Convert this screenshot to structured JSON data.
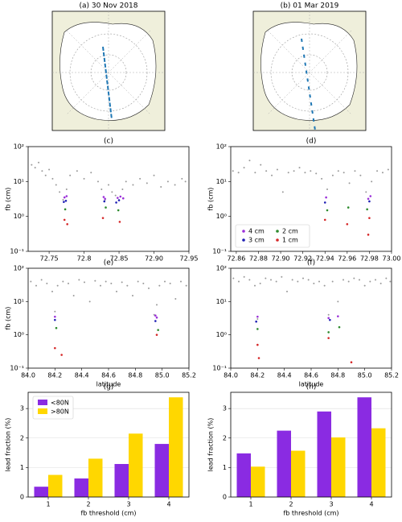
{
  "chart_data": [
    {
      "type": "map",
      "title": "(a) 30 Nov 2018"
    },
    {
      "type": "map",
      "title": "(b) 01 Mar 2019"
    },
    {
      "type": "scatter",
      "title": "(c)",
      "ylabel": "fb (cm)",
      "log_y": true,
      "grid": false,
      "xlim": [
        72.72,
        72.95
      ],
      "xticks": [
        72.75,
        72.8,
        {
          "value": 72.85,
          "label": "72.85"
        },
        {
          "value": 72.9,
          "label": "72.90"
        },
        72.95
      ],
      "ylim": [
        0.1,
        100
      ],
      "yticks": [
        {
          "value": 0.1,
          "label": "10⁻¹"
        },
        {
          "value": 1,
          "label": "10⁰"
        },
        {
          "value": 10,
          "label": "10¹"
        },
        {
          "value": 100,
          "label": "10²"
        }
      ],
      "series": [
        {
          "color": "#999999",
          "x": [
            72.725,
            72.73,
            72.735,
            72.74,
            72.745,
            72.75,
            72.755,
            72.76,
            72.765,
            72.77,
            72.775,
            72.78,
            72.79,
            72.8,
            72.81,
            72.82,
            72.825,
            72.83,
            72.835,
            72.84,
            72.845,
            72.85,
            72.855,
            72.86,
            72.87,
            72.88,
            72.89,
            72.9,
            72.91,
            72.92,
            72.93,
            72.94,
            72.945
          ],
          "values": [
            30,
            25,
            35,
            20,
            15,
            22,
            12,
            8,
            5,
            3,
            6,
            15,
            20,
            12,
            18,
            10,
            6,
            3,
            8,
            5,
            4,
            3,
            6,
            10,
            8,
            12,
            9,
            15,
            7,
            10,
            8,
            12,
            10
          ]
        },
        {
          "color": "#9b30d9",
          "x": [
            72.772,
            72.775,
            72.828,
            72.83,
            72.848,
            72.852,
            72.856
          ],
          "values": [
            3.5,
            3.8,
            3.6,
            3.2,
            3.4,
            3.7,
            3.3
          ]
        },
        {
          "color": "#1f1fb4",
          "x": [
            72.771,
            72.774,
            72.829,
            72.846,
            72.85
          ],
          "values": [
            2.6,
            2.8,
            2.7,
            2.5,
            2.9
          ]
        },
        {
          "color": "#2e8b2e",
          "x": [
            72.773,
            72.831,
            72.849
          ],
          "values": [
            1.6,
            1.8,
            1.5
          ]
        },
        {
          "color": "#d62728",
          "x": [
            72.772,
            72.776,
            72.827,
            72.851
          ],
          "values": [
            0.8,
            0.6,
            0.9,
            0.7
          ]
        }
      ]
    },
    {
      "type": "scatter",
      "title": "(d)",
      "ylabel": "fb (cm)",
      "log_y": true,
      "grid": false,
      "legend": "lower left",
      "xlim": [
        72.855,
        73.0
      ],
      "xticks": [
        72.86,
        72.88,
        {
          "value": 72.9,
          "label": "72.90"
        },
        72.92,
        72.94,
        72.96,
        72.98,
        {
          "value": 73,
          "label": "73.00"
        }
      ],
      "ylim": [
        0.1,
        100
      ],
      "yticks": [
        {
          "value": 0.1,
          "label": "10⁻¹"
        },
        {
          "value": 1,
          "label": "10⁰"
        },
        {
          "value": 10,
          "label": "10¹"
        },
        {
          "value": 100,
          "label": "10²"
        }
      ],
      "series": [
        {
          "color": "#999999",
          "x": [
            72.857,
            72.862,
            72.867,
            72.872,
            72.877,
            72.882,
            72.887,
            72.892,
            72.897,
            72.902,
            72.907,
            72.912,
            72.917,
            72.922,
            72.927,
            72.932,
            72.937,
            72.942,
            72.947,
            72.952,
            72.957,
            72.962,
            72.967,
            72.972,
            72.977,
            72.982,
            72.987,
            72.992,
            72.997
          ],
          "values": [
            20,
            18,
            25,
            40,
            18,
            30,
            20,
            15,
            22,
            5,
            18,
            20,
            25,
            18,
            20,
            17,
            12,
            6,
            15,
            20,
            18,
            9,
            20,
            15,
            5,
            10,
            20,
            18,
            22
          ]
        },
        {
          "name": "4 cm",
          "color": "#9b30d9",
          "x": [
            72.941,
            72.979,
            72.981
          ],
          "values": [
            3.5,
            3.2,
            3.8
          ]
        },
        {
          "name": "3 cm",
          "color": "#1f1fb4",
          "x": [
            72.94,
            72.98
          ],
          "values": [
            2.5,
            2.7
          ]
        },
        {
          "name": "2 cm",
          "color": "#2e8b2e",
          "x": [
            72.942,
            72.961,
            72.978
          ],
          "values": [
            1.5,
            1.8,
            1.6
          ]
        },
        {
          "name": "1 cm",
          "color": "#d62728",
          "x": [
            72.94,
            72.96,
            72.98,
            72.979
          ],
          "values": [
            0.8,
            0.6,
            0.9,
            0.3
          ]
        }
      ]
    },
    {
      "type": "scatter",
      "title": "(e)",
      "ylabel": "fb (cm)",
      "xlabel": "latitude",
      "log_y": true,
      "grid": false,
      "xlim": [
        84.0,
        85.2
      ],
      "xticks": [
        {
          "value": 84,
          "label": "84.0"
        },
        84.2,
        84.4,
        84.6,
        84.8,
        {
          "value": 85,
          "label": "85.0"
        },
        85.2
      ],
      "ylim": [
        0.1,
        100
      ],
      "yticks": [
        {
          "value": 0.1,
          "label": "10⁻¹"
        },
        {
          "value": 1,
          "label": "10⁰"
        },
        {
          "value": 10,
          "label": "10¹"
        },
        {
          "value": 100,
          "label": "10²"
        }
      ],
      "series": [
        {
          "color": "#999999",
          "x": [
            84.02,
            84.06,
            84.1,
            84.14,
            84.18,
            84.2,
            84.22,
            84.26,
            84.3,
            84.34,
            84.38,
            84.42,
            84.46,
            84.5,
            84.54,
            84.58,
            84.62,
            84.66,
            84.7,
            84.74,
            84.78,
            84.82,
            84.86,
            84.9,
            84.94,
            84.96,
            84.98,
            85.02,
            85.06,
            85.1,
            85.14,
            85.18
          ],
          "values": [
            40,
            30,
            45,
            35,
            20,
            5,
            30,
            40,
            35,
            15,
            45,
            38,
            10,
            42,
            30,
            40,
            35,
            20,
            38,
            30,
            15,
            40,
            35,
            25,
            4,
            8,
            30,
            40,
            35,
            12,
            40,
            30
          ]
        },
        {
          "color": "#9b30d9",
          "x": [
            84.2,
            84.95,
            84.96
          ],
          "values": [
            3.5,
            3.8,
            3.3
          ]
        },
        {
          "color": "#1f1fb4",
          "x": [
            84.2,
            84.95
          ],
          "values": [
            2.8,
            2.6
          ]
        },
        {
          "color": "#2e8b2e",
          "x": [
            84.21,
            84.97
          ],
          "values": [
            1.6,
            1.4
          ]
        },
        {
          "color": "#d62728",
          "x": [
            84.2,
            84.25,
            84.96
          ],
          "values": [
            0.4,
            0.25,
            1.0
          ]
        }
      ]
    },
    {
      "type": "scatter",
      "title": "(f)",
      "xlabel": "latitude",
      "log_y": true,
      "grid": false,
      "xlim": [
        84.0,
        85.2
      ],
      "xticks": [
        {
          "value": 84,
          "label": "84.0"
        },
        84.2,
        84.4,
        84.6,
        84.8,
        {
          "value": 85,
          "label": "85.0"
        },
        85.2
      ],
      "ylim": [
        0.1,
        100
      ],
      "yticks": [
        {
          "value": 0.1,
          "label": "10⁻¹"
        },
        {
          "value": 1,
          "label": "10⁰"
        },
        {
          "value": 10,
          "label": "10¹"
        },
        {
          "value": 100,
          "label": "10²"
        }
      ],
      "series": [
        {
          "color": "#999999",
          "x": [
            84.02,
            84.06,
            84.1,
            84.14,
            84.18,
            84.2,
            84.22,
            84.26,
            84.3,
            84.34,
            84.38,
            84.42,
            84.46,
            84.5,
            84.54,
            84.58,
            84.62,
            84.66,
            84.7,
            84.73,
            84.76,
            84.8,
            84.84,
            84.88,
            84.92,
            84.96,
            85.0,
            85.04,
            85.08,
            85.12,
            85.16,
            85.19
          ],
          "values": [
            50,
            40,
            55,
            45,
            30,
            3,
            35,
            50,
            45,
            40,
            55,
            20,
            45,
            40,
            50,
            45,
            35,
            40,
            30,
            4,
            40,
            10,
            45,
            40,
            50,
            45,
            30,
            40,
            45,
            35,
            50,
            40
          ]
        },
        {
          "color": "#9b30d9",
          "x": [
            84.2,
            84.73,
            84.8
          ],
          "values": [
            3.5,
            3.2,
            3.6
          ]
        },
        {
          "color": "#1f1fb4",
          "x": [
            84.19,
            84.74
          ],
          "values": [
            2.5,
            2.8
          ]
        },
        {
          "color": "#2e8b2e",
          "x": [
            84.2,
            84.73,
            84.81
          ],
          "values": [
            1.5,
            1.2,
            1.7
          ]
        },
        {
          "color": "#d62728",
          "x": [
            84.2,
            84.21,
            84.73,
            84.9
          ],
          "values": [
            0.5,
            0.2,
            0.8,
            0.15
          ]
        }
      ]
    },
    {
      "type": "bar",
      "title": "(g)",
      "xlabel": "fb threshold (cm)",
      "ylabel": "lead fraction (%)",
      "grid": true,
      "legend": "upper left",
      "categories": [
        "1",
        "2",
        "3",
        "4"
      ],
      "ylim": [
        0,
        3.55
      ],
      "yticks": [
        0,
        1,
        2,
        3
      ],
      "series": [
        {
          "name": "<80N",
          "color": "#8a2be2",
          "values": [
            0.35,
            0.63,
            1.12,
            1.8
          ]
        },
        {
          "name": ">80N",
          "color": "#ffd700",
          "values": [
            0.75,
            1.3,
            2.15,
            3.38
          ]
        }
      ]
    },
    {
      "type": "bar",
      "title": "(h)",
      "xlabel": "fb threshold (cm)",
      "ylabel": "lead fraction (%)",
      "grid": true,
      "categories": [
        "1",
        "2",
        "3",
        "4"
      ],
      "ylim": [
        0,
        3.55
      ],
      "yticks": [
        0,
        1,
        2,
        3
      ],
      "series": [
        {
          "color": "#8a2be2",
          "values": [
            1.48,
            2.25,
            2.9,
            3.38
          ]
        },
        {
          "color": "#ffd700",
          "values": [
            1.03,
            1.57,
            2.02,
            2.33
          ]
        }
      ]
    }
  ]
}
